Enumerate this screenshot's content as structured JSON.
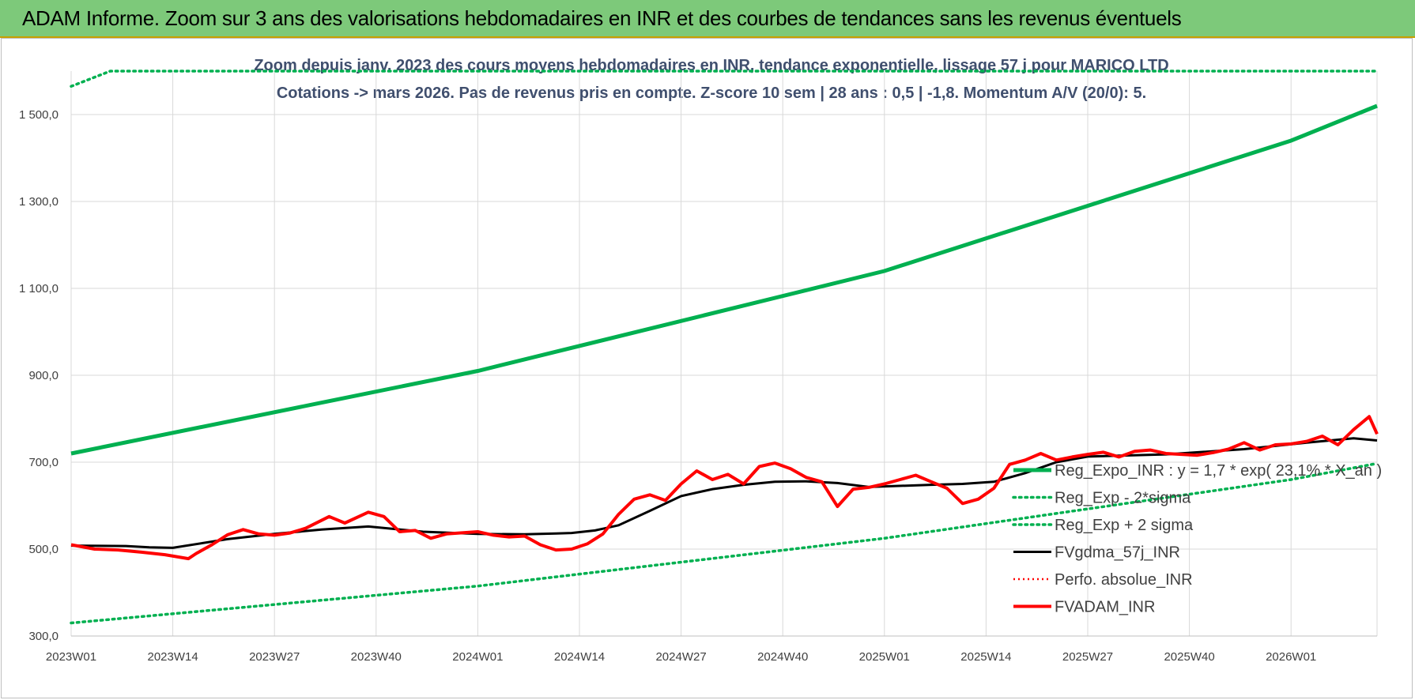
{
  "banner": {
    "title": "ADAM Informe. Zoom sur 3 ans des valorisations hebdomadaires en INR et des courbes de tendances sans les revenus éventuels"
  },
  "colors": {
    "banner": "#7dc97a",
    "trend": "#00b050",
    "red": "#ff0000",
    "black": "#000000",
    "title": "#404f6e"
  },
  "chart_data": {
    "type": "line",
    "title_line1": "Zoom depuis janv. 2023 des cours moyens hebdomadaires en INR, tendance exponentielle, lissage 57 j pour MARICO LTD",
    "title_line2": "Cotations -> mars 2026. Pas de revenus pris en compte. Z-score 10 sem | 28 ans : 0,5 | -1,8. Momentum A/V (20/0): 5.",
    "ylim": [
      300,
      1600
    ],
    "yticks": [
      "300,0",
      "500,0",
      "700,0",
      "900,0",
      "1 100,0",
      "1 300,0",
      "1 500,0"
    ],
    "ytick_values": [
      300,
      500,
      700,
      900,
      1100,
      1300,
      1500
    ],
    "xticks": [
      "2023W01",
      "2023W14",
      "2023W27",
      "2023W40",
      "2024W01",
      "2024W14",
      "2024W27",
      "2024W40",
      "2025W01",
      "2025W14",
      "2025W27",
      "2025W40",
      "2026W01"
    ],
    "xtick_index": [
      0,
      13,
      26,
      39,
      52,
      65,
      78,
      91,
      104,
      117,
      130,
      143,
      156
    ],
    "n_weeks": 168,
    "grid": true,
    "legend_position": "right",
    "series": [
      {
        "name": "Reg_Expo_INR : y = 1,7 * exp( 23,1% * X_an )",
        "style": "trend",
        "x": [
          0,
          52,
          104,
          156,
          167
        ],
        "y": [
          720,
          910,
          1140,
          1440,
          1520
        ]
      },
      {
        "name": "Reg_Exp - 2*sigma",
        "style": "dotted",
        "x": [
          0,
          52,
          104,
          156,
          167
        ],
        "y": [
          330,
          415,
          525,
          660,
          697
        ]
      },
      {
        "name": "Reg_Exp + 2 sigma",
        "style": "dotted",
        "x": [
          0,
          5,
          167
        ],
        "y": [
          1565,
          1600,
          1600
        ]
      },
      {
        "name": "FVgdma_57j_INR",
        "style": "black",
        "x": [
          0,
          7,
          10,
          13,
          20,
          26,
          32,
          38,
          45,
          52,
          58,
          62,
          64,
          67,
          70,
          74,
          78,
          82,
          86,
          90,
          94,
          98,
          102,
          110,
          114,
          118,
          122,
          126,
          130,
          140,
          150,
          158,
          164,
          167
        ],
        "y": [
          508,
          507,
          504,
          503,
          523,
          535,
          545,
          552,
          540,
          535,
          534,
          536,
          537,
          543,
          555,
          588,
          622,
          638,
          648,
          655,
          656,
          652,
          643,
          648,
          650,
          655,
          675,
          700,
          713,
          718,
          730,
          745,
          755,
          750
        ]
      },
      {
        "name": "Perfo. absolue_INR",
        "style": "red-dotted",
        "x": [],
        "y": []
      },
      {
        "name": "FVADAM_INR",
        "style": "red",
        "x": [
          0,
          3,
          6,
          9,
          12,
          15,
          16,
          18,
          20,
          22,
          24,
          26,
          28,
          30,
          33,
          35,
          38,
          40,
          42,
          44,
          46,
          48,
          52,
          54,
          56,
          58,
          60,
          62,
          64,
          66,
          68,
          70,
          72,
          74,
          76,
          78,
          80,
          82,
          84,
          86,
          88,
          90,
          92,
          94,
          96,
          98,
          100,
          102,
          104,
          106,
          108,
          110,
          112,
          114,
          116,
          118,
          120,
          122,
          124,
          126,
          128,
          130,
          132,
          134,
          136,
          138,
          140,
          142,
          144,
          146,
          148,
          150,
          152,
          154,
          156,
          158,
          160,
          162,
          164,
          166,
          167
        ],
        "y": [
          510,
          500,
          498,
          493,
          487,
          478,
          490,
          510,
          533,
          545,
          535,
          532,
          537,
          548,
          575,
          560,
          585,
          575,
          540,
          543,
          525,
          535,
          540,
          532,
          528,
          530,
          510,
          498,
          500,
          512,
          535,
          580,
          615,
          625,
          612,
          650,
          680,
          660,
          672,
          650,
          690,
          698,
          685,
          665,
          655,
          598,
          638,
          642,
          650,
          660,
          670,
          655,
          640,
          605,
          615,
          640,
          695,
          705,
          720,
          705,
          712,
          718,
          723,
          712,
          725,
          728,
          720,
          718,
          716,
          722,
          730,
          745,
          728,
          740,
          742,
          748,
          760,
          740,
          775,
          805,
          765
        ]
      }
    ]
  }
}
